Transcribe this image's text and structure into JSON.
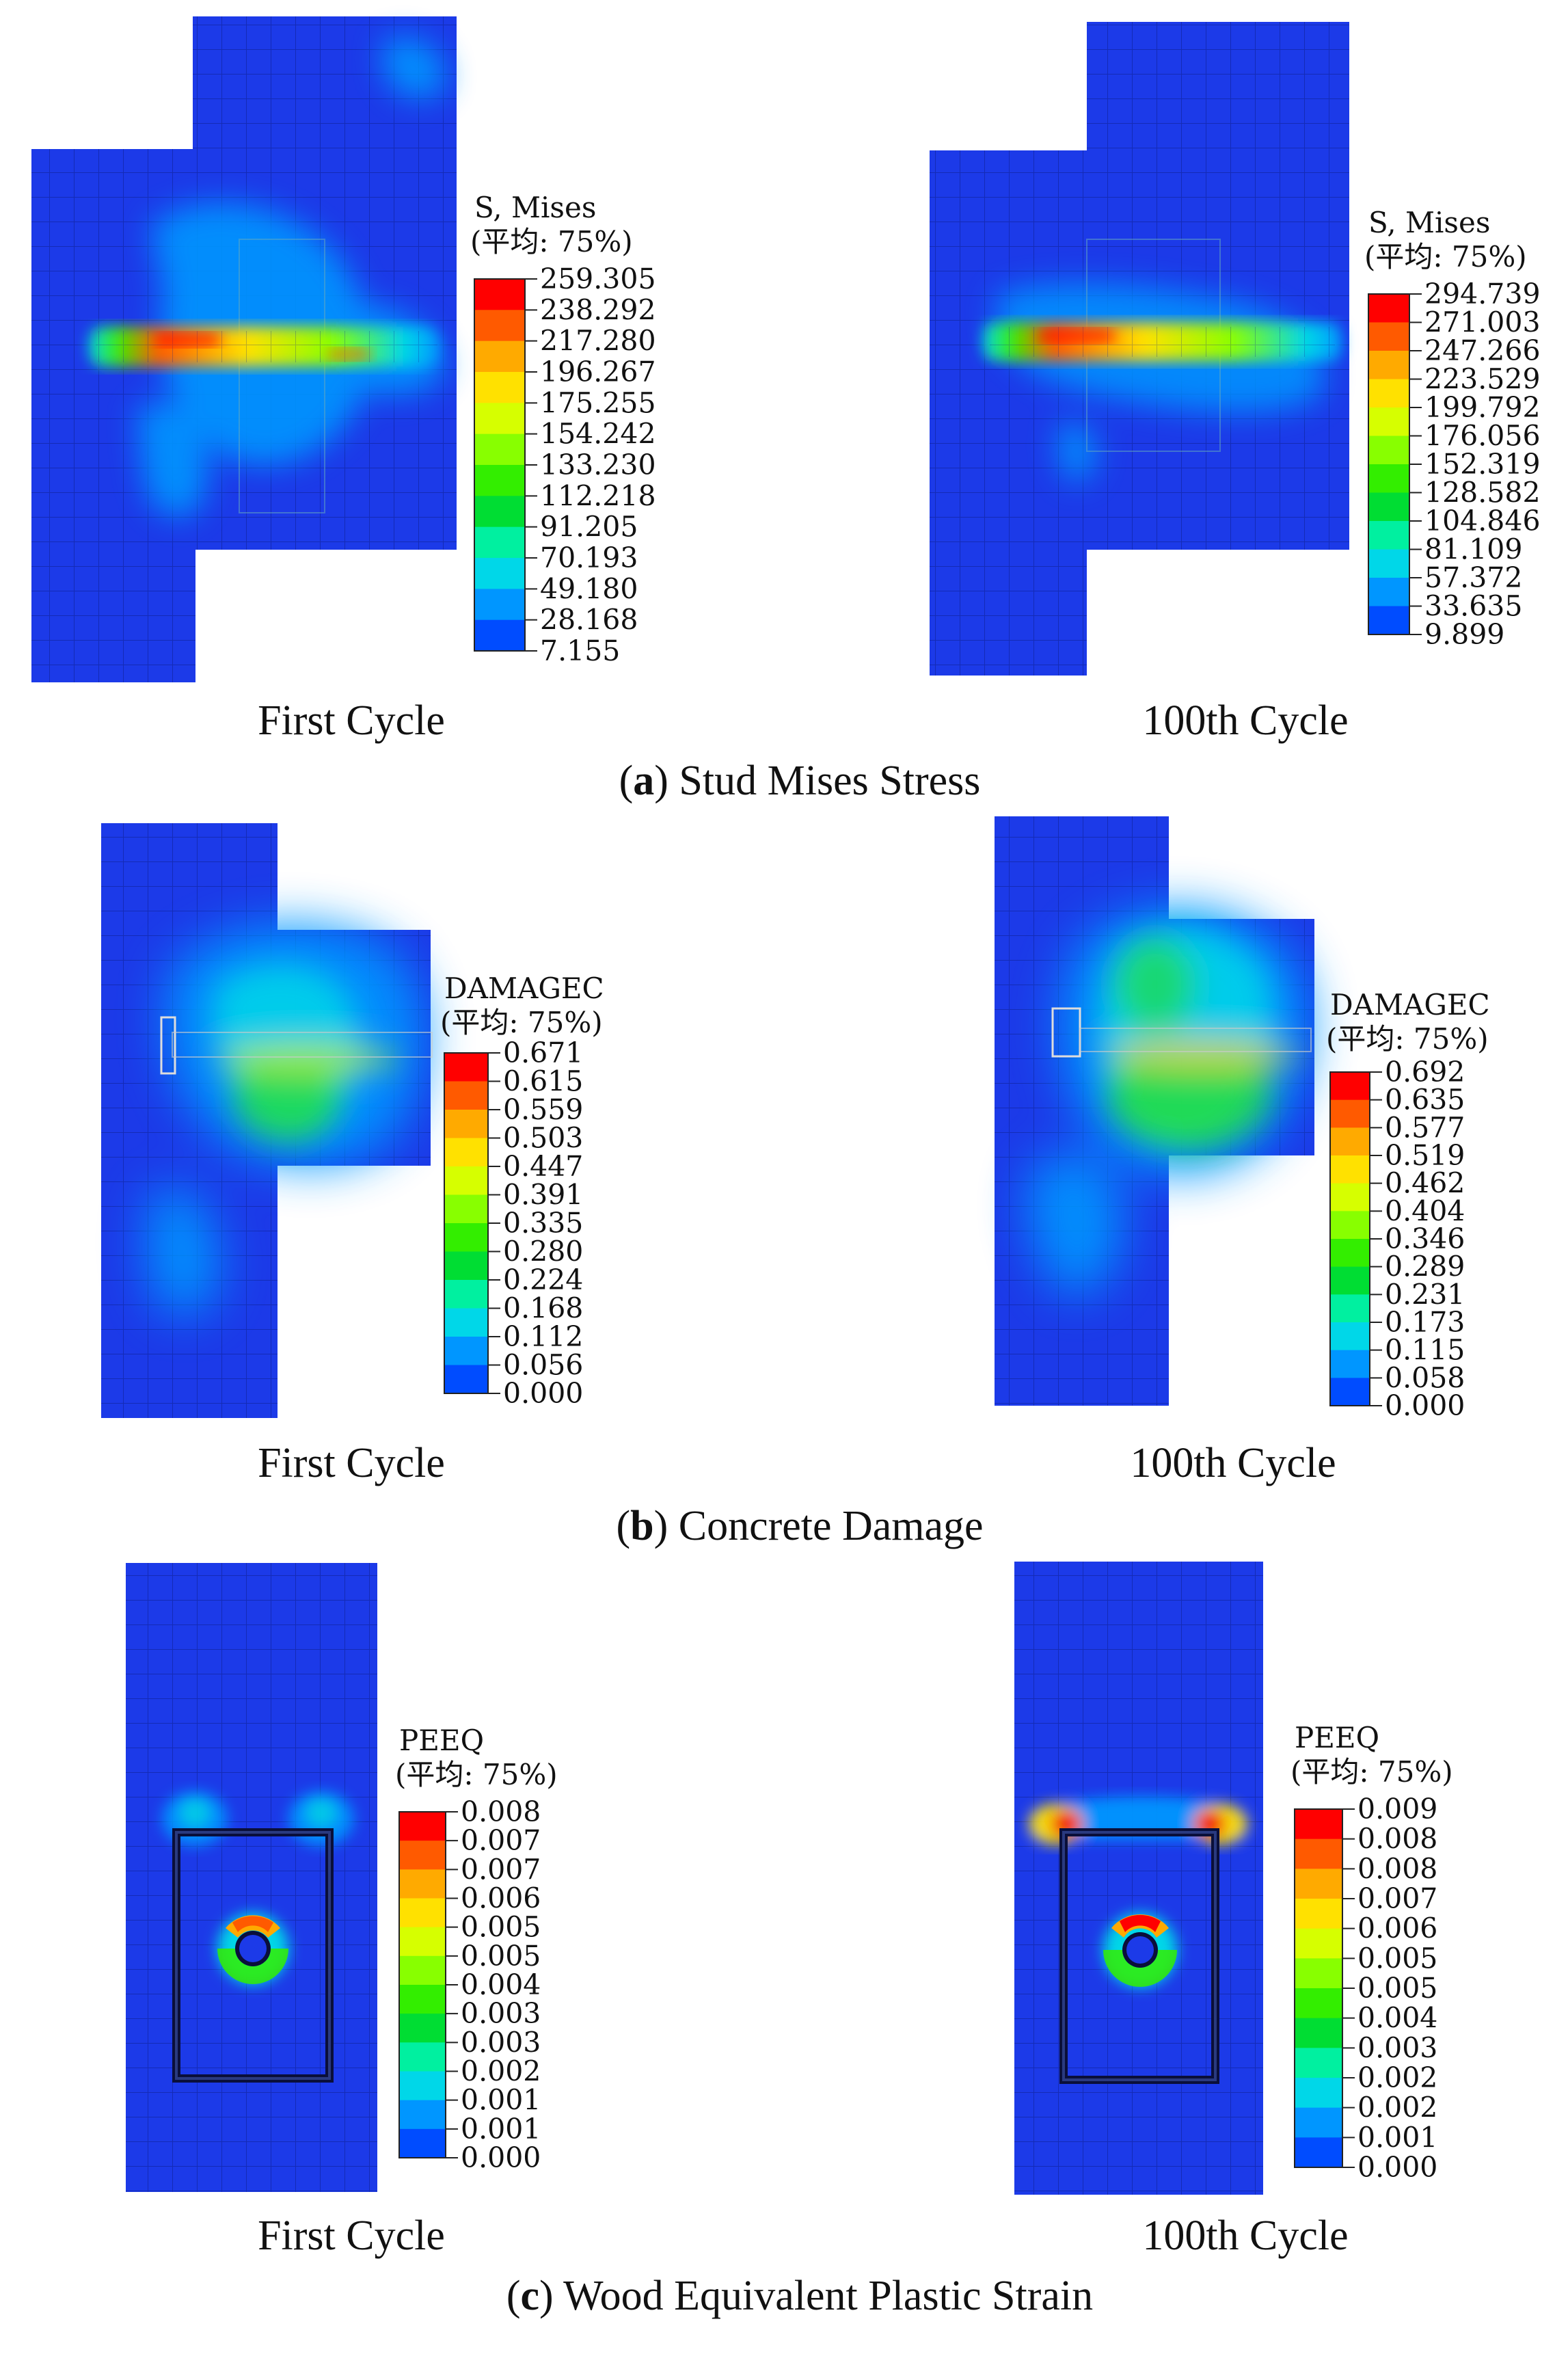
{
  "panels": [
    {
      "id": "a",
      "caption_letter": "a",
      "caption_text": "Stud Mises Stress",
      "legend_title_1": "S, Mises",
      "legend_title_2": "(平均: 75%)",
      "images": [
        {
          "caption": "First Cycle",
          "legend_values": [
            "259.305",
            "238.292",
            "217.280",
            "196.267",
            "175.255",
            "154.242",
            "133.230",
            "112.218",
            "91.205",
            "70.193",
            "49.180",
            "28.168",
            "7.155"
          ]
        },
        {
          "caption": "100th Cycle",
          "legend_values": [
            "294.739",
            "271.003",
            "247.266",
            "223.529",
            "199.792",
            "176.056",
            "152.319",
            "128.582",
            "104.846",
            "81.109",
            "57.372",
            "33.635",
            "9.899"
          ]
        }
      ]
    },
    {
      "id": "b",
      "caption_letter": "b",
      "caption_text": "Concrete Damage",
      "legend_title_1": "DAMAGEC",
      "legend_title_2": "(平均: 75%)",
      "images": [
        {
          "caption": "First Cycle",
          "legend_values": [
            "0.671",
            "0.615",
            "0.559",
            "0.503",
            "0.447",
            "0.391",
            "0.335",
            "0.280",
            "0.224",
            "0.168",
            "0.112",
            "0.056",
            "0.000"
          ]
        },
        {
          "caption": "100th Cycle",
          "legend_values": [
            "0.692",
            "0.635",
            "0.577",
            "0.519",
            "0.462",
            "0.404",
            "0.346",
            "0.289",
            "0.231",
            "0.173",
            "0.115",
            "0.058",
            "0.000"
          ]
        }
      ]
    },
    {
      "id": "c",
      "caption_letter": "c",
      "caption_text": "Wood Equivalent Plastic Strain",
      "legend_title_1": "PEEQ",
      "legend_title_2": "(平均: 75%)",
      "images": [
        {
          "caption": "First Cycle",
          "legend_values": [
            "0.008",
            "0.007",
            "0.007",
            "0.006",
            "0.005",
            "0.005",
            "0.004",
            "0.003",
            "0.003",
            "0.002",
            "0.001",
            "0.001",
            "0.000"
          ]
        },
        {
          "caption": "100th Cycle",
          "legend_values": [
            "0.009",
            "0.008",
            "0.008",
            "0.007",
            "0.006",
            "0.005",
            "0.005",
            "0.004",
            "0.003",
            "0.002",
            "0.002",
            "0.001",
            "0.000"
          ]
        }
      ]
    }
  ],
  "contour_colors": [
    "#ff0000",
    "#ff5a00",
    "#ffaa00",
    "#ffe100",
    "#d6ff00",
    "#88ff00",
    "#33ee00",
    "#00dd33",
    "#00f0a0",
    "#00d7e8",
    "#0096ff",
    "#004cff",
    "#0000ff"
  ],
  "model_color": "#1c3ae8",
  "mesh_line_color": "#0c1f8c"
}
